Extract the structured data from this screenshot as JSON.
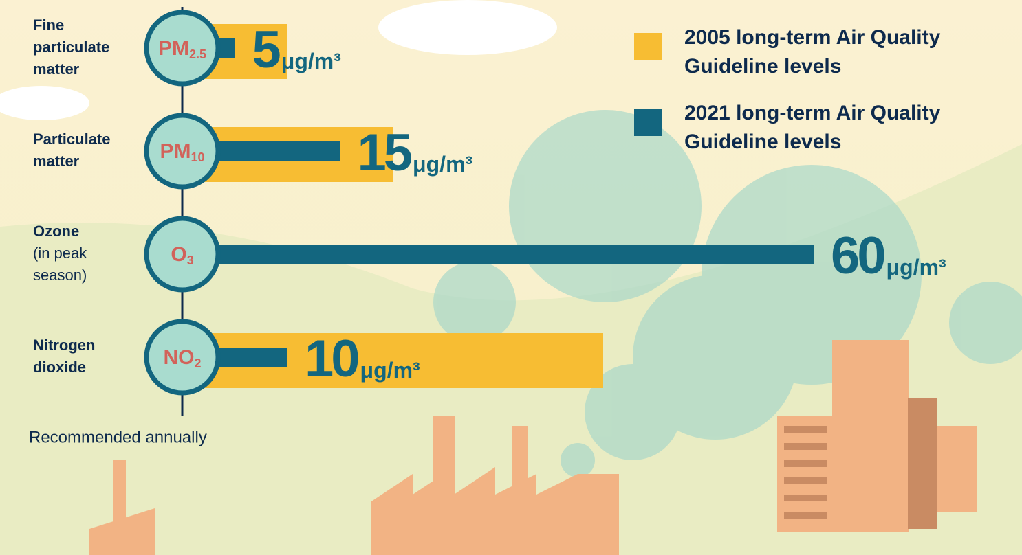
{
  "chart_data": {
    "type": "bar",
    "orientation": "horizontal",
    "categories": [
      "Fine particulate matter",
      "Particulate matter",
      "Ozone",
      "Nitrogen dioxide"
    ],
    "category_notes": [
      null,
      null,
      "(in peak season)",
      null
    ],
    "pollutant_symbols": [
      [
        "PM",
        "2.5"
      ],
      [
        "PM",
        "10"
      ],
      [
        "O",
        "3"
      ],
      [
        "NO",
        "2"
      ]
    ],
    "series": [
      {
        "name": "2005 long-term Air Quality Guideline levels",
        "color": "#f7bd33",
        "values": [
          10,
          20,
          null,
          40
        ]
      },
      {
        "name": "2021 long-term Air Quality Guideline levels",
        "color": "#13667f",
        "values": [
          5,
          15,
          60,
          10
        ]
      }
    ],
    "unit": "μg/m³",
    "xlim": [
      0,
      60
    ],
    "footnote": "Recommended annually",
    "legend": "top-right"
  }
}
